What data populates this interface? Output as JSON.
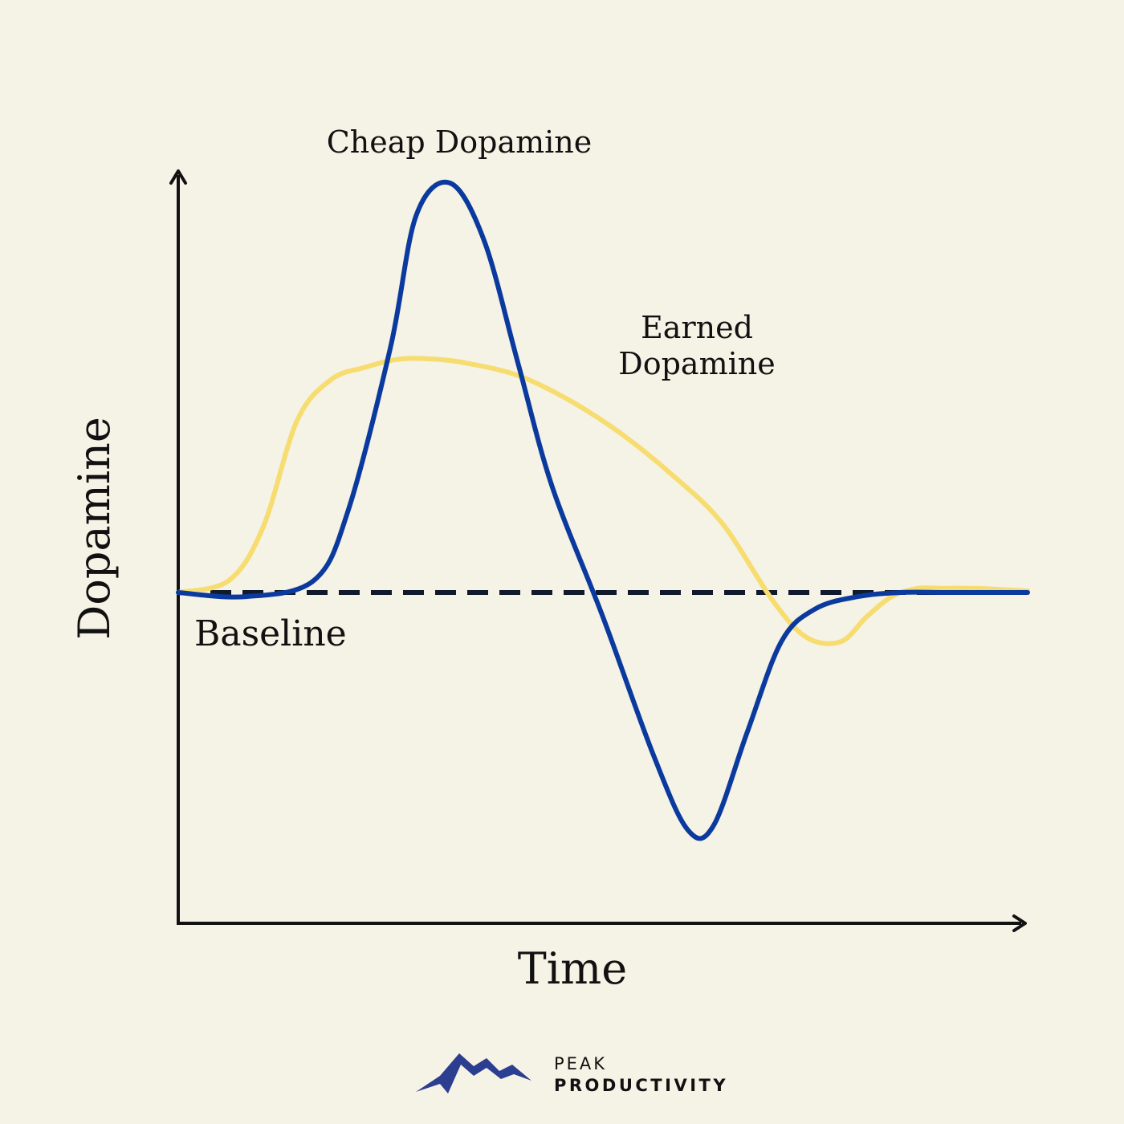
{
  "chart_data": {
    "type": "line",
    "title": "",
    "xlabel": "Time",
    "ylabel": "Dopamine",
    "xlim": [
      0,
      100
    ],
    "ylim": [
      -4,
      5
    ],
    "grid": false,
    "legend": "none",
    "baseline": {
      "label": "Baseline",
      "value": 0,
      "style": "dashed",
      "color": "#0f1b2d"
    },
    "series": [
      {
        "name": "Cheap Dopamine",
        "color": "#0b3a9e",
        "x": [
          0,
          8,
          16,
          20,
          25,
          28,
          32,
          36,
          40,
          44,
          50,
          56,
          60,
          63,
          67,
          71,
          75,
          80,
          85,
          90,
          95,
          100
        ],
        "y": [
          0,
          -0.05,
          0.15,
          1.0,
          3.0,
          4.6,
          5.0,
          4.3,
          2.8,
          1.3,
          -0.3,
          -2.0,
          -2.9,
          -2.85,
          -1.7,
          -0.6,
          -0.2,
          -0.05,
          0.0,
          0.0,
          0.0,
          0.0
        ]
      },
      {
        "name": "Earned Dopamine",
        "color": "#f7dc6f",
        "x": [
          0,
          6,
          10,
          14,
          18,
          22,
          26,
          30,
          34,
          40,
          46,
          52,
          58,
          64,
          70,
          74,
          78,
          81,
          84,
          87,
          90,
          94,
          100
        ],
        "y": [
          0,
          0.15,
          0.8,
          2.1,
          2.6,
          2.75,
          2.85,
          2.85,
          2.8,
          2.65,
          2.35,
          1.95,
          1.45,
          0.85,
          -0.1,
          -0.55,
          -0.6,
          -0.3,
          -0.05,
          0.05,
          0.05,
          0.05,
          0.02
        ]
      }
    ]
  },
  "annotations": {
    "cheap": "Cheap Dopamine",
    "earned_line1": "Earned",
    "earned_line2": "Dopamine"
  },
  "brand": {
    "line1": "PEAK",
    "line2": "PRODUCTIVITY",
    "logo_icon": "mountain-icon",
    "logo_color": "#2c3e8f"
  }
}
